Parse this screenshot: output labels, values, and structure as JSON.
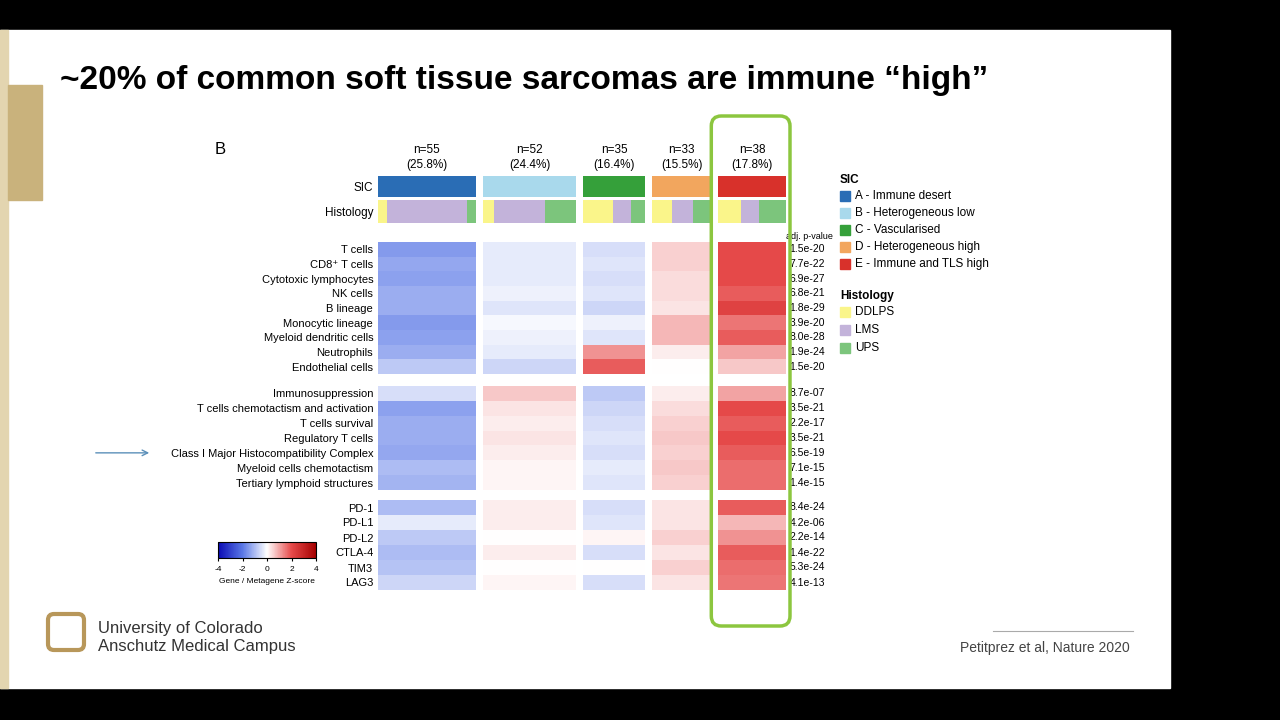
{
  "slide": {
    "title": "~20% of common soft tissue sarcomas are immune “high”",
    "panel": "B",
    "institution": [
      "University of Colorado",
      "Anschutz Medical Campus"
    ],
    "citation": "Petitprez et al, Nature 2020"
  },
  "chart_data": {
    "type": "heatmap",
    "header_rows": [
      "SIC",
      "Histology"
    ],
    "legend_titles": [
      "SIC",
      "Histology"
    ],
    "p_header": "adj. p-value",
    "clusters": [
      {
        "sic": "A - Immune desert",
        "color": "#2a6db5",
        "n": 55,
        "n_label": "n=55",
        "share_label": "(25.8%)",
        "histology": [
          5,
          45,
          5
        ]
      },
      {
        "sic": "B - Heterogeneous low",
        "color": "#a9d9ec",
        "n": 52,
        "n_label": "n=52",
        "share_label": "(24.4%)",
        "histology": [
          6,
          29,
          17
        ]
      },
      {
        "sic": "C - Vascularised",
        "color": "#35a03a",
        "n": 35,
        "n_label": "n=35",
        "share_label": "(16.4%)",
        "histology": [
          17,
          10,
          8
        ]
      },
      {
        "sic": "D - Heterogeneous high",
        "color": "#f2a65e",
        "n": 33,
        "n_label": "n=33",
        "share_label": "(15.5%)",
        "histology": [
          11,
          12,
          10
        ]
      },
      {
        "sic": "E - Immune and TLS high",
        "color": "#d8312b",
        "n": 38,
        "n_label": "n=38",
        "share_label": "(17.8%)",
        "histology": [
          13,
          10,
          15
        ]
      }
    ],
    "histology": [
      {
        "name": "DDLPS",
        "color": "#faf58a"
      },
      {
        "name": "LMS",
        "color": "#c3b3da"
      },
      {
        "name": "UPS",
        "color": "#7cc57c"
      }
    ],
    "row_groups": [
      [
        {
          "name": "T cells",
          "p": "1.5e-20",
          "cells": [
            -1.5,
            -0.3,
            -0.5,
            0.5,
            2.0
          ]
        },
        {
          "name": "CD8⁺ T cells",
          "p": "7.7e-22",
          "cells": [
            -1.3,
            -0.3,
            -0.4,
            0.5,
            2.0
          ]
        },
        {
          "name": "Cytotoxic lymphocytes",
          "p": "6.9e-27",
          "cells": [
            -1.4,
            -0.3,
            -0.5,
            0.4,
            2.0
          ]
        },
        {
          "name": "NK cells",
          "p": "6.8e-21",
          "cells": [
            -1.2,
            -0.2,
            -0.4,
            0.4,
            1.8
          ]
        },
        {
          "name": "B lineage",
          "p": "1.8e-29",
          "cells": [
            -1.2,
            -0.4,
            -0.6,
            0.3,
            2.2
          ]
        },
        {
          "name": "Monocytic lineage",
          "p": "3.9e-20",
          "cells": [
            -1.5,
            -0.1,
            -0.2,
            0.8,
            1.5
          ]
        },
        {
          "name": "Myeloid dendritic cells",
          "p": "8.0e-28",
          "cells": [
            -1.4,
            -0.2,
            -0.4,
            0.8,
            1.8
          ]
        },
        {
          "name": "Neutrophils",
          "p": "1.9e-24",
          "cells": [
            -1.2,
            -0.3,
            1.2,
            0.2,
            1.0
          ]
        },
        {
          "name": "Endothelial cells",
          "p": "1.5e-20",
          "cells": [
            -0.8,
            -0.6,
            1.8,
            0.0,
            0.6
          ]
        }
      ],
      [
        {
          "name": "Immunosuppression",
          "p": "8.7e-07",
          "cells": [
            -0.5,
            0.6,
            -0.8,
            0.2,
            1.0
          ]
        },
        {
          "name": "T cells chemotactism and activation",
          "p": "3.5e-21",
          "cells": [
            -1.4,
            0.3,
            -0.6,
            0.4,
            2.0
          ]
        },
        {
          "name": "T cells survival",
          "p": "2.2e-17",
          "cells": [
            -1.2,
            0.2,
            -0.5,
            0.5,
            1.8
          ]
        },
        {
          "name": "Regulatory T cells",
          "p": "3.5e-21",
          "cells": [
            -1.2,
            0.3,
            -0.4,
            0.6,
            2.0
          ]
        },
        {
          "name": "Class I Major Histocompatibility Complex",
          "p": "6.5e-19",
          "cells": [
            -1.3,
            0.2,
            -0.5,
            0.5,
            1.8
          ]
        },
        {
          "name": "Myeloid cells chemotactism",
          "p": "7.1e-15",
          "cells": [
            -1.0,
            0.1,
            -0.3,
            0.6,
            1.6
          ]
        },
        {
          "name": "Tertiary lymphoid structures",
          "p": "1.4e-15",
          "cells": [
            -1.1,
            0.1,
            -0.4,
            0.5,
            1.6
          ]
        }
      ],
      [
        {
          "name": "PD-1",
          "p": "8.4e-24",
          "cells": [
            -1.0,
            0.2,
            -0.5,
            0.3,
            1.8
          ]
        },
        {
          "name": "PD-L1",
          "p": "4.2e-06",
          "cells": [
            -0.3,
            0.2,
            -0.4,
            0.3,
            0.8
          ]
        },
        {
          "name": "PD-L2",
          "p": "2.2e-14",
          "cells": [
            -0.8,
            0.0,
            0.1,
            0.5,
            1.2
          ]
        },
        {
          "name": "CTLA-4",
          "p": "1.4e-22",
          "cells": [
            -1.0,
            0.2,
            -0.5,
            0.3,
            1.8
          ]
        },
        {
          "name": "TIM3",
          "p": "5.3e-24",
          "cells": [
            -0.9,
            0.0,
            0.0,
            0.5,
            1.6
          ]
        },
        {
          "name": "LAG3",
          "p": "4.1e-13",
          "cells": [
            -0.6,
            0.1,
            -0.5,
            0.3,
            1.5
          ]
        }
      ]
    ],
    "colorbar": {
      "label": "Gene / Metagene Z-score",
      "range": [
        -4,
        4
      ],
      "ticks": [
        -4,
        -2,
        0,
        2,
        4
      ]
    }
  }
}
